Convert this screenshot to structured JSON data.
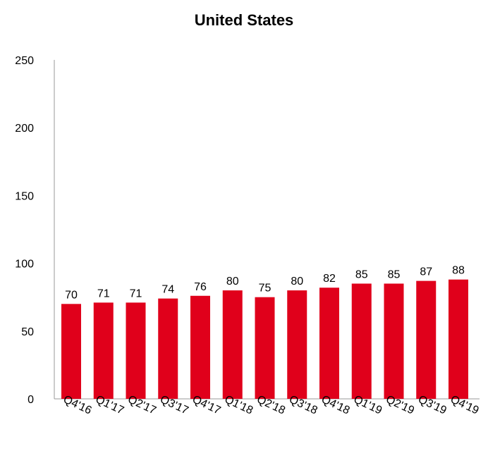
{
  "chart_data": {
    "type": "bar",
    "title": "United States",
    "categories": [
      "Q4'16",
      "Q1'17",
      "Q2'17",
      "Q3'17",
      "Q4'17",
      "Q1'18",
      "Q2'18",
      "Q3'18",
      "Q4'18",
      "Q1'19",
      "Q2'19",
      "Q3'19",
      "Q4'19"
    ],
    "values": [
      70,
      71,
      71,
      74,
      76,
      80,
      75,
      80,
      82,
      85,
      85,
      87,
      88
    ],
    "xlabel": "",
    "ylabel": "",
    "ylim": [
      0,
      250
    ],
    "yticks": [
      0,
      50,
      100,
      150,
      200,
      250
    ],
    "grid": false,
    "legend": "none",
    "bar_color": "#E0001B"
  }
}
